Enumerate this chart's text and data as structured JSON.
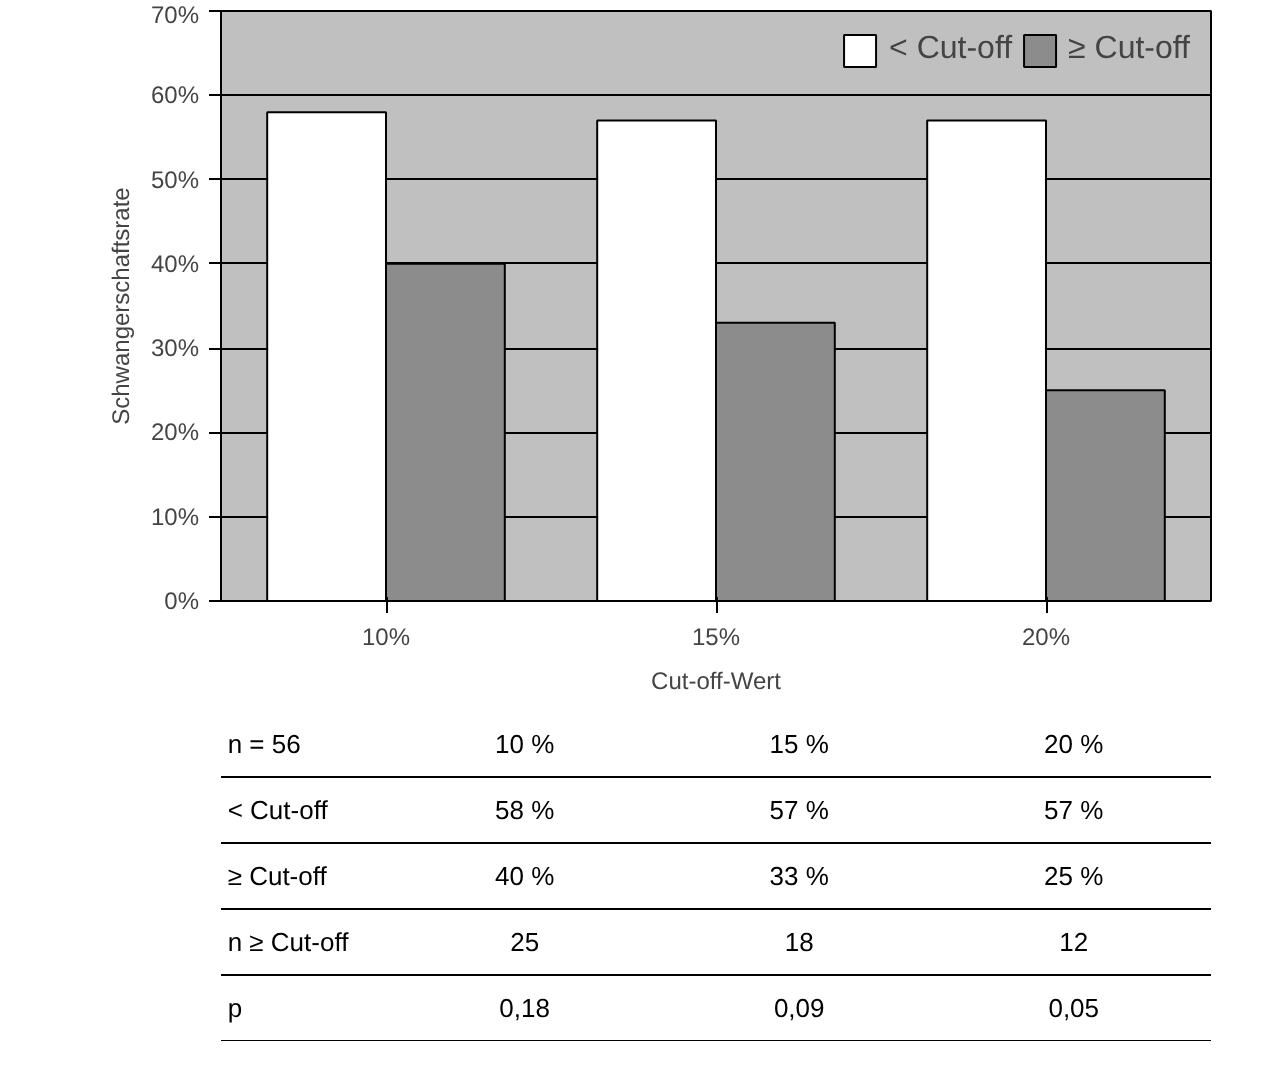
{
  "chart_data": {
    "type": "bar",
    "xlabel": "Cut-off-Wert",
    "ylabel": "Schwangerschaftsrate",
    "categories": [
      "10%",
      "15%",
      "20%"
    ],
    "series": [
      {
        "name": "< Cut-off",
        "color": "#ffffff",
        "values": [
          58,
          57,
          57
        ],
        "value_labels": [
          "58 %",
          "57 %",
          "57 %"
        ]
      },
      {
        "name": "≥ Cut-off",
        "color": "#8c8c8c",
        "values": [
          40,
          33,
          25
        ],
        "value_labels": [
          "40 %",
          "33 %",
          "25 %"
        ]
      }
    ],
    "ylim": [
      0,
      70
    ],
    "yticks": [
      {
        "value": 0,
        "label": "0%"
      },
      {
        "value": 10,
        "label": "10%"
      },
      {
        "value": 20,
        "label": "20%"
      },
      {
        "value": 30,
        "label": "30%"
      },
      {
        "value": 40,
        "label": "40%"
      },
      {
        "value": 50,
        "label": "50%"
      },
      {
        "value": 60,
        "label": "60%"
      },
      {
        "value": 70,
        "label": "70%"
      }
    ],
    "grid": "y",
    "legend": "top right",
    "annotations": [
      "n = 56",
      "10 %",
      "15 %",
      "20 %",
      "n ≥ Cut-off",
      "25",
      "18",
      "12",
      "p",
      "0,18",
      "0,09",
      "0,05"
    ]
  }
}
